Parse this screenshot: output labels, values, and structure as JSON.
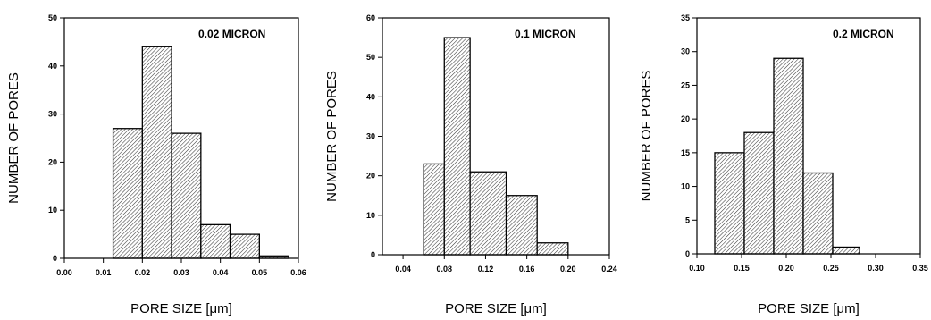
{
  "chart_data": [
    {
      "type": "bar",
      "title": "0.02 MICRON",
      "xlabel": "PORE SIZE [μm]",
      "ylabel": "NUMBER OF PORES",
      "xlim": [
        0.0,
        0.06
      ],
      "ylim": [
        0,
        50
      ],
      "xticks": [
        "0.00",
        "0.01",
        "0.02",
        "0.03",
        "0.04",
        "0.05",
        "0.06"
      ],
      "yticks": [
        "0",
        "10",
        "20",
        "30",
        "40",
        "50"
      ],
      "bins": [
        [
          0.0,
          0.0125
        ],
        [
          0.0125,
          0.02
        ],
        [
          0.02,
          0.0275
        ],
        [
          0.0275,
          0.035
        ],
        [
          0.035,
          0.0425
        ],
        [
          0.0425,
          0.05
        ],
        [
          0.05,
          0.0575
        ]
      ],
      "values": [
        0,
        27,
        44,
        26,
        7,
        5,
        0.5
      ]
    },
    {
      "type": "bar",
      "title": "0.1 MICRON",
      "xlabel": "PORE SIZE [μm]",
      "ylabel": "NUMBER OF PORES",
      "xlim": [
        0.02,
        0.24
      ],
      "ylim": [
        0,
        60
      ],
      "xticks": [
        "0.04",
        "0.08",
        "0.12",
        "0.16",
        "0.20",
        "0.24"
      ],
      "yticks": [
        "0",
        "10",
        "20",
        "30",
        "40",
        "50",
        "60"
      ],
      "bins": [
        [
          0.06,
          0.08
        ],
        [
          0.08,
          0.105
        ],
        [
          0.105,
          0.14
        ],
        [
          0.14,
          0.17
        ],
        [
          0.17,
          0.2
        ],
        [
          0.2,
          0.24
        ]
      ],
      "values": [
        23,
        55,
        21,
        15,
        3,
        0
      ]
    },
    {
      "type": "bar",
      "title": "0.2 MICRON",
      "xlabel": "PORE SIZE [μm]",
      "ylabel": "NUMBER OF PORES",
      "xlim": [
        0.1,
        0.35
      ],
      "ylim": [
        0,
        35
      ],
      "xticks": [
        "0.10",
        "0.15",
        "0.20",
        "0.25",
        "0.30",
        "0.35"
      ],
      "yticks": [
        "0",
        "5",
        "10",
        "15",
        "20",
        "25",
        "30",
        "35"
      ],
      "bins": [
        [
          0.12,
          0.153
        ],
        [
          0.153,
          0.186
        ],
        [
          0.186,
          0.219
        ],
        [
          0.219,
          0.252
        ],
        [
          0.252,
          0.282
        ],
        [
          0.282,
          0.33
        ]
      ],
      "values": [
        15,
        18,
        29,
        12,
        1,
        0
      ]
    }
  ]
}
